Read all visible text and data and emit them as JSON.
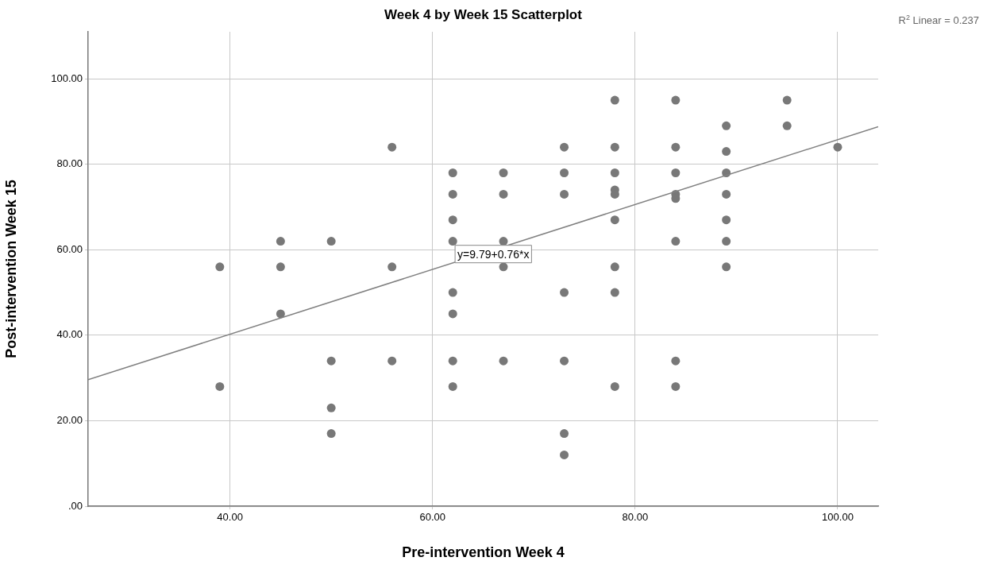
{
  "chart_data": {
    "type": "scatter",
    "title": "Week 4 by Week 15 Scatterplot",
    "xlabel": "Pre-intervention Week 4",
    "ylabel": "Post-intervention Week 15",
    "xlim": [
      26,
      104
    ],
    "xticks": [
      {
        "value": 40,
        "label": "40.00"
      },
      {
        "value": 60,
        "label": "60.00"
      },
      {
        "value": 80,
        "label": "80.00"
      },
      {
        "value": 100,
        "label": "100.00"
      }
    ],
    "ylim": [
      0,
      111
    ],
    "yticks": [
      {
        "value": 0,
        "label": ".00"
      },
      {
        "value": 20,
        "label": "20.00"
      },
      {
        "value": 40,
        "label": "40.00"
      },
      {
        "value": 60,
        "label": "60.00"
      },
      {
        "value": 80,
        "label": "80.00"
      },
      {
        "value": 100,
        "label": "100.00"
      }
    ],
    "grid": true,
    "legend": false,
    "series": [
      {
        "marker": "circle",
        "color": "#787878",
        "x": [
          39,
          39,
          45,
          45,
          45,
          50,
          50,
          50,
          50,
          56,
          56,
          56,
          62,
          62,
          62,
          62,
          62,
          62,
          62,
          62,
          67,
          67,
          67,
          67,
          67,
          73,
          73,
          73,
          73,
          73,
          73,
          73,
          78,
          78,
          78,
          78,
          78,
          78,
          78,
          78,
          78,
          84,
          84,
          84,
          84,
          84,
          84,
          84,
          84,
          89,
          89,
          89,
          89,
          89,
          89,
          89,
          95,
          95,
          100
        ],
        "values": [
          56,
          28,
          62,
          56,
          45,
          62,
          34,
          23,
          17,
          84,
          56,
          34,
          78,
          73,
          67,
          62,
          50,
          45,
          34,
          28,
          78,
          73,
          62,
          56,
          34,
          84,
          78,
          73,
          50,
          34,
          17,
          12,
          95,
          84,
          78,
          74,
          73,
          67,
          56,
          50,
          28,
          95,
          84,
          78,
          73,
          72,
          62,
          34,
          28,
          89,
          83,
          78,
          73,
          67,
          62,
          56,
          95,
          89,
          84
        ]
      },
      {
        "type": "line",
        "color": "#808080",
        "x": [
          26,
          104
        ],
        "values": [
          29.6,
          88.8
        ]
      }
    ],
    "annotations": [
      {
        "text": "y=9.79+0.76*x",
        "x": 66,
        "y": 59
      },
      "R$^{2}$ Linear = 0.237"
    ]
  }
}
